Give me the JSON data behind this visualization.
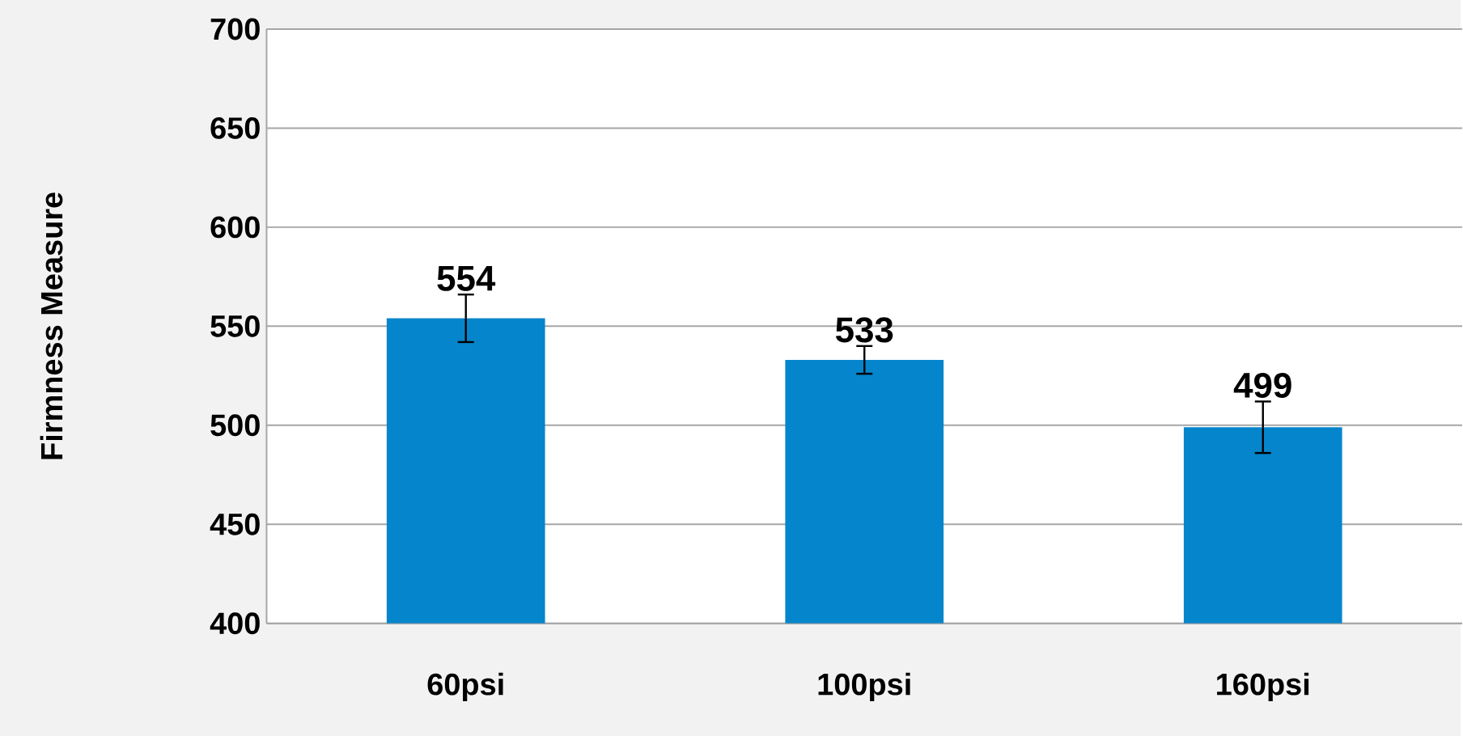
{
  "chart_data": {
    "type": "bar",
    "ylabel": "Firmness Measure",
    "categories": [
      "60psi",
      "100psi",
      "160psi"
    ],
    "values": [
      554,
      533,
      499
    ],
    "errors": [
      12,
      7,
      13
    ],
    "color": "#0585cc",
    "data_labels": true,
    "grid": "y",
    "ylim": [
      400,
      700
    ],
    "yticks": [
      400,
      450,
      500,
      550,
      600,
      650,
      700
    ]
  }
}
